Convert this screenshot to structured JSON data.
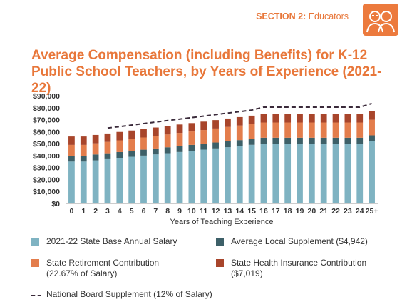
{
  "header": {
    "section_label": "SECTION 2:",
    "section_name": "Educators",
    "icon": "educators-icon"
  },
  "chart_data": {
    "type": "bar",
    "stacked": true,
    "title": "Average Compensation (including Benefits) for K-12 Public School Teachers, by Years of Experience (2021-22)",
    "xlabel": "Years of Teaching Experience",
    "ylabel": "",
    "ylim": [
      0,
      90000
    ],
    "yticks": [
      "$0",
      "$10,000",
      "$20,000",
      "$30,000",
      "$40,000",
      "$50,000",
      "$60,000",
      "$70,000",
      "$80,000",
      "$90,000"
    ],
    "ytick_values": [
      0,
      10000,
      20000,
      30000,
      40000,
      50000,
      60000,
      70000,
      80000,
      90000
    ],
    "grid": false,
    "legend_position": "bottom",
    "categories": [
      "0",
      "1",
      "2",
      "3",
      "4",
      "5",
      "6",
      "7",
      "8",
      "9",
      "10",
      "11",
      "12",
      "13",
      "14",
      "15",
      "16",
      "17",
      "18",
      "19",
      "20",
      "21",
      "22",
      "23",
      "24",
      "25+"
    ],
    "series": [
      {
        "name": "2021-22 State Base Annual Salary",
        "color": "#7fb3c2",
        "values": [
          35000,
          35000,
          36000,
          37000,
          38000,
          39000,
          40000,
          41000,
          42000,
          43000,
          44000,
          45000,
          46000,
          47000,
          48000,
          49000,
          50000,
          50000,
          50000,
          50000,
          50000,
          50000,
          50000,
          50000,
          50000,
          52000
        ]
      },
      {
        "name": "Average Local Supplement ($4,942)",
        "color": "#3d6068",
        "values": [
          4942,
          4942,
          4942,
          4942,
          4942,
          4942,
          4942,
          4942,
          4942,
          4942,
          4942,
          4942,
          4942,
          4942,
          4942,
          4942,
          4942,
          4942,
          4942,
          4942,
          4942,
          4942,
          4942,
          4942,
          4942,
          4942
        ]
      },
      {
        "name": "State Retirement Contribution (22.67% of Salary)",
        "color": "#e37d4c",
        "values": [
          9000,
          9000,
          9300,
          9500,
          9800,
          10000,
          10200,
          10500,
          10700,
          11000,
          11200,
          11400,
          11700,
          12000,
          12200,
          12400,
          12700,
          12700,
          12700,
          12700,
          12700,
          12700,
          12700,
          12700,
          12700,
          13000
        ]
      },
      {
        "name": "State Health Insurance Contribution ($7,019)",
        "color": "#a8452b",
        "values": [
          7019,
          7019,
          7019,
          7019,
          7019,
          7019,
          7019,
          7019,
          7019,
          7019,
          7019,
          7019,
          7019,
          7019,
          7019,
          7019,
          7019,
          7019,
          7019,
          7019,
          7019,
          7019,
          7019,
          7019,
          7019,
          7019
        ]
      }
    ],
    "line_series": {
      "name": "National Board Supplement (12% of Salary)",
      "color": "#3a2a3a",
      "style": "dashed",
      "x": [
        "3",
        "15",
        "16",
        "24",
        "25+"
      ],
      "values": [
        63000,
        78000,
        80500,
        80500,
        83500
      ]
    }
  },
  "legend": {
    "base_salary_line1": "2021-22 State Base Annual Salary",
    "local_supplement_line1": "Average Local Supplement ($4,942)",
    "retirement_line1": "State Retirement Contribution",
    "retirement_line2": "(22.67% of Salary)",
    "health_line1": "State Health Insurance Contribution",
    "health_line2": "($7,019)",
    "board_line1": "National Board Supplement (12% of Salary)"
  }
}
